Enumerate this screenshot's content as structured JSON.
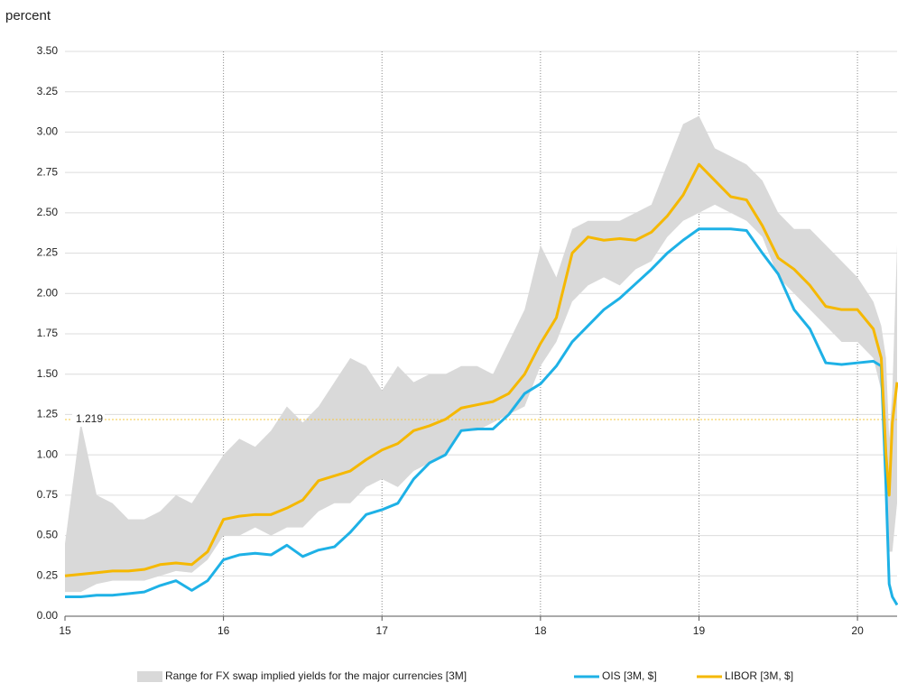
{
  "chart_data": {
    "type": "line",
    "y_unit_label": "percent",
    "x": [
      15.0,
      15.1,
      15.2,
      15.3,
      15.4,
      15.5,
      15.6,
      15.7,
      15.8,
      15.9,
      16.0,
      16.1,
      16.2,
      16.3,
      16.4,
      16.5,
      16.6,
      16.7,
      16.8,
      16.9,
      17.0,
      17.1,
      17.2,
      17.3,
      17.4,
      17.5,
      17.6,
      17.7,
      17.8,
      17.9,
      18.0,
      18.1,
      18.2,
      18.3,
      18.4,
      18.5,
      18.6,
      18.7,
      18.8,
      18.9,
      19.0,
      19.1,
      19.2,
      19.3,
      19.4,
      19.5,
      19.6,
      19.7,
      19.8,
      19.9,
      20.0,
      20.1,
      20.15,
      20.18,
      20.2,
      20.22,
      20.25
    ],
    "series": [
      {
        "name": "Range for FX swap implied yields for the major currencies [3M]",
        "color": "#d9d9d9",
        "lower": [
          0.15,
          0.15,
          0.2,
          0.22,
          0.22,
          0.22,
          0.25,
          0.28,
          0.27,
          0.35,
          0.5,
          0.5,
          0.55,
          0.5,
          0.55,
          0.55,
          0.65,
          0.7,
          0.7,
          0.8,
          0.85,
          0.8,
          0.9,
          0.95,
          1.0,
          1.15,
          1.15,
          1.2,
          1.25,
          1.3,
          1.55,
          1.7,
          1.95,
          2.05,
          2.1,
          2.05,
          2.15,
          2.2,
          2.35,
          2.45,
          2.5,
          2.55,
          2.5,
          2.45,
          2.35,
          2.1,
          2.0,
          1.9,
          1.8,
          1.7,
          1.7,
          1.6,
          1.4,
          0.8,
          0.4,
          0.4,
          0.7
        ],
        "upper": [
          0.45,
          1.2,
          0.75,
          0.7,
          0.6,
          0.6,
          0.65,
          0.75,
          0.7,
          0.85,
          1.0,
          1.1,
          1.05,
          1.15,
          1.3,
          1.2,
          1.3,
          1.45,
          1.6,
          1.55,
          1.4,
          1.55,
          1.45,
          1.5,
          1.5,
          1.55,
          1.55,
          1.5,
          1.7,
          1.9,
          2.3,
          2.1,
          2.4,
          2.45,
          2.45,
          2.45,
          2.5,
          2.55,
          2.8,
          3.05,
          3.1,
          2.9,
          2.85,
          2.8,
          2.7,
          2.5,
          2.4,
          2.4,
          2.3,
          2.2,
          2.1,
          1.95,
          1.8,
          1.6,
          1.1,
          1.4,
          2.3
        ]
      },
      {
        "name": "OIS [3M, $]",
        "color": "#1eb1e6",
        "values": [
          0.12,
          0.12,
          0.13,
          0.13,
          0.14,
          0.15,
          0.19,
          0.22,
          0.16,
          0.22,
          0.35,
          0.38,
          0.39,
          0.38,
          0.44,
          0.37,
          0.41,
          0.43,
          0.52,
          0.63,
          0.66,
          0.7,
          0.85,
          0.95,
          1.0,
          1.15,
          1.16,
          1.16,
          1.25,
          1.38,
          1.44,
          1.55,
          1.7,
          1.8,
          1.9,
          1.97,
          2.06,
          2.15,
          2.25,
          2.33,
          2.4,
          2.4,
          2.4,
          2.39,
          2.25,
          2.12,
          1.9,
          1.78,
          1.57,
          1.56,
          1.57,
          1.58,
          1.55,
          0.8,
          0.2,
          0.12,
          0.07
        ]
      },
      {
        "name": "LIBOR [3M, $]",
        "color": "#f5b800",
        "values": [
          0.25,
          0.26,
          0.27,
          0.28,
          0.28,
          0.29,
          0.32,
          0.33,
          0.32,
          0.4,
          0.6,
          0.62,
          0.63,
          0.63,
          0.67,
          0.72,
          0.84,
          0.87,
          0.9,
          0.97,
          1.03,
          1.07,
          1.15,
          1.18,
          1.22,
          1.29,
          1.31,
          1.33,
          1.38,
          1.5,
          1.69,
          1.85,
          2.25,
          2.35,
          2.33,
          2.34,
          2.33,
          2.38,
          2.48,
          2.61,
          2.8,
          2.7,
          2.6,
          2.58,
          2.42,
          2.22,
          2.15,
          2.05,
          1.92,
          1.9,
          1.9,
          1.78,
          1.6,
          1.0,
          0.75,
          1.2,
          1.45
        ]
      }
    ],
    "reference_line": 1.219,
    "reference_color": "#f5c842",
    "xlim": [
      15,
      20.25
    ],
    "xticks": [
      15,
      16,
      17,
      18,
      19,
      20
    ],
    "ylim": [
      0,
      3.5
    ],
    "yticks": [
      {
        "value": 0,
        "label": "0.00"
      },
      {
        "value": 0.25,
        "label": "0.25"
      },
      {
        "value": 0.5,
        "label": "0.50"
      },
      {
        "value": 0.75,
        "label": "0.75"
      },
      {
        "value": 1,
        "label": "1.00"
      },
      {
        "value": 1.25,
        "label": "1.25"
      },
      {
        "value": 1.5,
        "label": "1.50"
      },
      {
        "value": 1.75,
        "label": "1.75"
      },
      {
        "value": 2,
        "label": "2.00"
      },
      {
        "value": 2.25,
        "label": "2.25"
      },
      {
        "value": 2.5,
        "label": "2.50"
      },
      {
        "value": 2.75,
        "label": "2.75"
      },
      {
        "value": 3,
        "label": "3.00"
      },
      {
        "value": 3.25,
        "label": "3.25"
      },
      {
        "value": 3.5,
        "label": "3.50"
      }
    ],
    "grid": true,
    "legend": "bottom"
  }
}
